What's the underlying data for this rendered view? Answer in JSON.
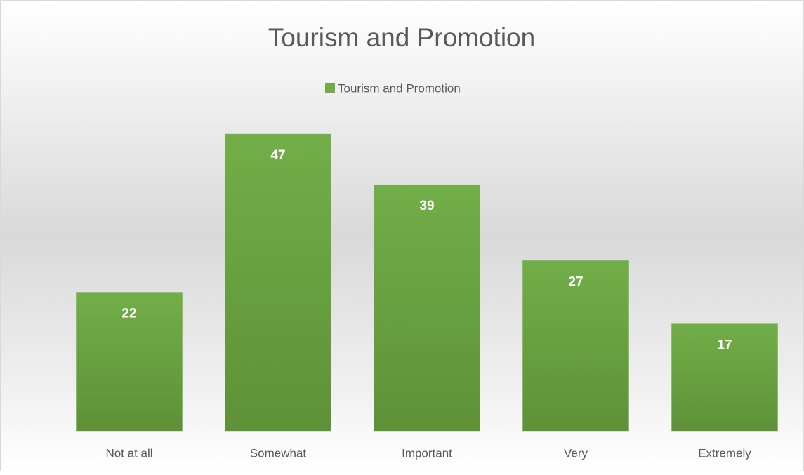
{
  "chart_data": {
    "type": "bar",
    "title": "Tourism and Promotion",
    "series": [
      {
        "name": "Tourism and Promotion",
        "color": "#70ad47",
        "values": [
          22,
          47,
          39,
          27,
          17
        ]
      }
    ],
    "categories": [
      "Not at all",
      "Somewhat",
      "Important",
      "Very",
      "Extremely"
    ],
    "ylim": [
      0,
      50
    ],
    "legend": "top"
  }
}
